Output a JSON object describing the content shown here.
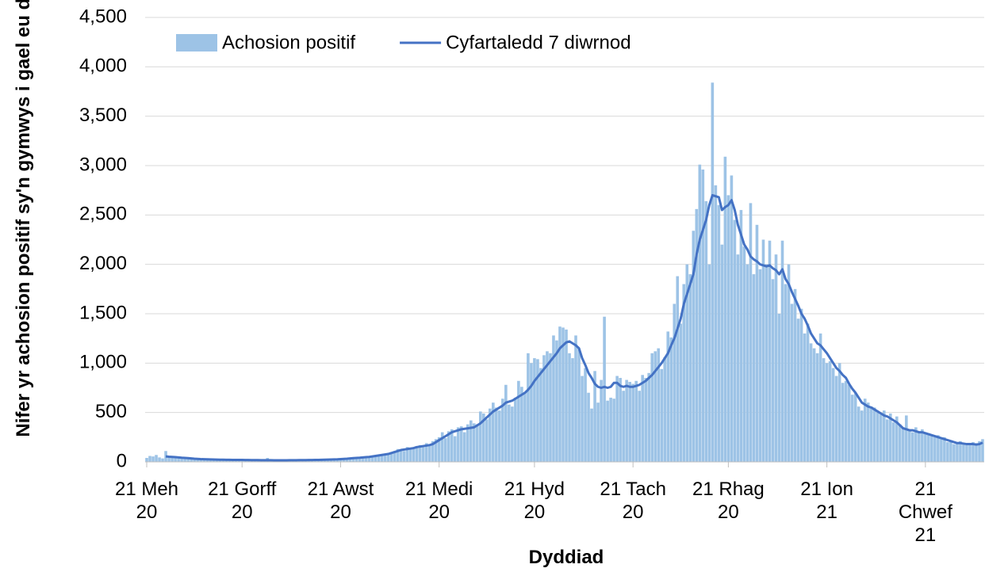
{
  "chart_data": {
    "type": "bar+line",
    "x_label": "Dyddiad",
    "y_label": "Nifer yr achosion positif sy'n gymwys i gael eu dilyn",
    "categories": [
      "21 Meh 20",
      null,
      null,
      null,
      null,
      null,
      null,
      null,
      null,
      null,
      null,
      null,
      null,
      null,
      null,
      null,
      null,
      null,
      null,
      null,
      null,
      null,
      null,
      null,
      null,
      null,
      null,
      null,
      null,
      null,
      "21 Gorff 20",
      null,
      null,
      null,
      null,
      null,
      null,
      null,
      null,
      null,
      null,
      null,
      null,
      null,
      null,
      null,
      null,
      null,
      null,
      null,
      null,
      null,
      null,
      null,
      null,
      null,
      null,
      null,
      null,
      null,
      null,
      "21 Awst 20",
      null,
      null,
      null,
      null,
      null,
      null,
      null,
      null,
      null,
      null,
      null,
      null,
      null,
      null,
      null,
      null,
      null,
      null,
      null,
      null,
      null,
      null,
      null,
      null,
      null,
      null,
      null,
      null,
      null,
      null,
      "21 Medi 20",
      null,
      null,
      null,
      null,
      null,
      null,
      null,
      null,
      null,
      null,
      null,
      null,
      null,
      null,
      null,
      null,
      null,
      null,
      null,
      null,
      null,
      null,
      null,
      null,
      null,
      null,
      null,
      null,
      null,
      "21 Hyd 20",
      null,
      null,
      null,
      null,
      null,
      null,
      null,
      null,
      null,
      null,
      null,
      null,
      null,
      null,
      null,
      null,
      null,
      null,
      null,
      null,
      null,
      null,
      null,
      null,
      null,
      null,
      null,
      null,
      null,
      null,
      "21 Tach 20",
      null,
      null,
      null,
      null,
      null,
      null,
      null,
      null,
      null,
      null,
      null,
      null,
      null,
      null,
      null,
      null,
      null,
      null,
      null,
      null,
      null,
      null,
      null,
      null,
      null,
      null,
      null,
      null,
      null,
      "21 Rhag 20",
      null,
      null,
      null,
      null,
      null,
      null,
      null,
      null,
      null,
      null,
      null,
      null,
      null,
      null,
      null,
      null,
      null,
      null,
      null,
      null,
      null,
      null,
      null,
      null,
      null,
      null,
      null,
      null,
      null,
      null,
      "21 Ion 21",
      null,
      null,
      null,
      null,
      null,
      null,
      null,
      null,
      null,
      null,
      null,
      null,
      null,
      null,
      null,
      null,
      null,
      null,
      null,
      null,
      null,
      null,
      null,
      null,
      null,
      null,
      null,
      null,
      null,
      null,
      "21 Chwef 21",
      null,
      null,
      null,
      null,
      null,
      null,
      null,
      null,
      null,
      null,
      null,
      null,
      null,
      null,
      null,
      null,
      null,
      null
    ],
    "series": [
      {
        "name": "Achosion positif",
        "type": "bar",
        "color": "#9dc3e6",
        "values": [
          40,
          60,
          55,
          70,
          45,
          35,
          110,
          50,
          60,
          40,
          35,
          50,
          45,
          30,
          40,
          25,
          30,
          35,
          20,
          25,
          30,
          20,
          25,
          20,
          20,
          25,
          15,
          20,
          30,
          20,
          25,
          15,
          20,
          25,
          15,
          20,
          15,
          20,
          40,
          15,
          20,
          15,
          15,
          20,
          15,
          20,
          20,
          15,
          20,
          25,
          15,
          20,
          25,
          20,
          15,
          25,
          20,
          25,
          30,
          25,
          30,
          35,
          30,
          35,
          40,
          35,
          45,
          40,
          50,
          55,
          45,
          60,
          55,
          70,
          80,
          70,
          90,
          100,
          110,
          130,
          120,
          110,
          150,
          140,
          130,
          160,
          170,
          150,
          190,
          160,
          210,
          230,
          250,
          300,
          240,
          310,
          330,
          260,
          350,
          360,
          300,
          380,
          420,
          390,
          380,
          510,
          490,
          430,
          540,
          600,
          550,
          520,
          640,
          780,
          580,
          560,
          650,
          820,
          760,
          700,
          1100,
          1000,
          1050,
          1040,
          950,
          1080,
          1120,
          1100,
          1280,
          1230,
          1370,
          1360,
          1340,
          1100,
          1050,
          1280,
          1150,
          870,
          950,
          700,
          540,
          920,
          600,
          830,
          1470,
          620,
          650,
          640,
          870,
          850,
          720,
          830,
          810,
          790,
          820,
          720,
          880,
          850,
          900,
          1100,
          1120,
          1150,
          940,
          1060,
          1320,
          1260,
          1600,
          1880,
          1400,
          1800,
          2000,
          1900,
          2340,
          2560,
          3010,
          2960,
          2640,
          2000,
          3840,
          2800,
          2600,
          2200,
          3090,
          2700,
          2900,
          2450,
          2100,
          2550,
          2180,
          2000,
          2620,
          1900,
          2400,
          1950,
          2250,
          2000,
          2240,
          1850,
          2100,
          1500,
          2240,
          1800,
          2000,
          1600,
          1750,
          1450,
          1550,
          1300,
          1400,
          1200,
          1150,
          1100,
          1300,
          1050,
          1000,
          1020,
          950,
          870,
          1000,
          800,
          820,
          780,
          680,
          700,
          560,
          520,
          640,
          600,
          560,
          550,
          500,
          480,
          520,
          430,
          490,
          400,
          460,
          380,
          350,
          470,
          330,
          300,
          350,
          310,
          330,
          300,
          290,
          270,
          250,
          270,
          240,
          250,
          200,
          220,
          180,
          200,
          210,
          190,
          170,
          180,
          200,
          190,
          210,
          230
        ]
      },
      {
        "name": "Cyfartaledd 7 diwrnod",
        "type": "line",
        "color": "#4472c4",
        "values": [
          null,
          null,
          null,
          null,
          null,
          null,
          55,
          52,
          50,
          48,
          45,
          42,
          40,
          38,
          35,
          32,
          30,
          28,
          27,
          26,
          25,
          24,
          23,
          22,
          22,
          21,
          21,
          20,
          20,
          20,
          20,
          19,
          19,
          18,
          18,
          18,
          17,
          17,
          17,
          17,
          16,
          16,
          16,
          16,
          16,
          17,
          17,
          17,
          18,
          18,
          18,
          19,
          19,
          20,
          20,
          21,
          22,
          23,
          24,
          25,
          26,
          28,
          30,
          32,
          35,
          38,
          40,
          42,
          45,
          48,
          50,
          55,
          60,
          65,
          70,
          75,
          80,
          90,
          100,
          110,
          120,
          125,
          130,
          135,
          140,
          150,
          155,
          160,
          165,
          170,
          180,
          200,
          220,
          240,
          260,
          280,
          300,
          310,
          320,
          330,
          335,
          340,
          345,
          350,
          370,
          390,
          420,
          450,
          480,
          510,
          530,
          550,
          570,
          600,
          610,
          620,
          640,
          660,
          680,
          700,
          730,
          770,
          820,
          860,
          900,
          940,
          980,
          1020,
          1060,
          1100,
          1150,
          1180,
          1210,
          1220,
          1200,
          1180,
          1150,
          1050,
          980,
          900,
          850,
          790,
          760,
          750,
          760,
          750,
          760,
          800,
          800,
          770,
          760,
          770,
          760,
          760,
          770,
          780,
          800,
          820,
          850,
          880,
          920,
          960,
          1000,
          1050,
          1100,
          1180,
          1250,
          1350,
          1450,
          1600,
          1700,
          1800,
          1900,
          2100,
          2250,
          2350,
          2450,
          2600,
          2700,
          2690,
          2680,
          2550,
          2580,
          2600,
          2650,
          2550,
          2400,
          2300,
          2200,
          2150,
          2080,
          2050,
          2030,
          2000,
          1990,
          1980,
          1990,
          1960,
          1940,
          1900,
          1950,
          1850,
          1800,
          1720,
          1650,
          1580,
          1500,
          1450,
          1380,
          1300,
          1250,
          1200,
          1180,
          1140,
          1100,
          1050,
          1000,
          950,
          920,
          880,
          850,
          790,
          740,
          700,
          650,
          600,
          580,
          560,
          550,
          530,
          510,
          490,
          470,
          460,
          440,
          420,
          400,
          370,
          340,
          330,
          320,
          320,
          310,
          300,
          300,
          290,
          280,
          270,
          260,
          250,
          240,
          230,
          220,
          210,
          200,
          190,
          190,
          185,
          180,
          180,
          180,
          175,
          180,
          195
        ]
      }
    ],
    "ylim": [
      0,
      4500
    ],
    "yticks": [
      0,
      500,
      {
        "value": 1000,
        "label": "1,000"
      },
      {
        "value": 1500,
        "label": "1,500"
      },
      {
        "value": 2000,
        "label": "2,000"
      },
      {
        "value": 2500,
        "label": "2,500"
      },
      {
        "value": 3000,
        "label": "3,000"
      },
      {
        "value": 3500,
        "label": "3,500"
      },
      {
        "value": 4000,
        "label": "4,000"
      },
      {
        "value": 4500,
        "label": "4,500"
      }
    ],
    "grid": true,
    "legend": "top"
  }
}
